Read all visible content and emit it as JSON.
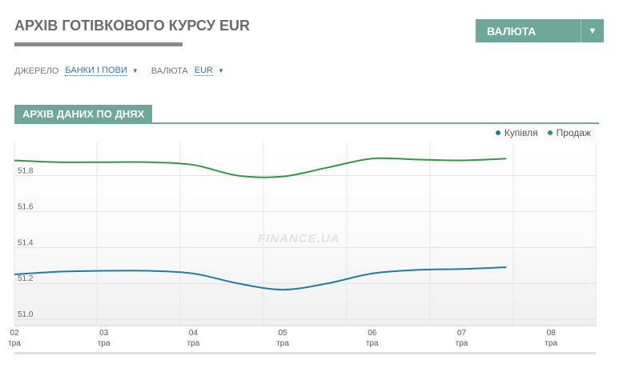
{
  "header": {
    "title": "АРХІВ ГОТІВКОВОГО КУРСУ EUR",
    "currency_button": "ВАЛЮТА",
    "currency_caret": "▼"
  },
  "filters": {
    "source_label": "ДЖЕРЕЛО",
    "source_value": "БАНКИ І ПОВИ",
    "currency_label": "ВАЛЮТА",
    "currency_value": "EUR",
    "caret": "▼"
  },
  "section": {
    "title": "АРХІВ ДАНИХ ПО ДНЯХ"
  },
  "watermark": "FINANCE.UA",
  "colors": {
    "buy": "#1b7ea8",
    "sell": "#2e9b44",
    "accent": "#6fa89a"
  },
  "chart_data": {
    "type": "line",
    "categories": [
      "02\nтра",
      "03\nтра",
      "04\nтра",
      "05\nтра",
      "06\nтра",
      "07\nтра",
      "08\nтра"
    ],
    "x_labels": [
      {
        "day": "02",
        "month": "тра"
      },
      {
        "day": "03",
        "month": "тра"
      },
      {
        "day": "04",
        "month": "тра"
      },
      {
        "day": "05",
        "month": "тра"
      },
      {
        "day": "06",
        "month": "тра"
      },
      {
        "day": "07",
        "month": "тра"
      },
      {
        "day": "08",
        "month": "тра"
      }
    ],
    "x": [
      2,
      2.5,
      3,
      3.5,
      4,
      4.5,
      5,
      5.5,
      6,
      6.5,
      7,
      7.5
    ],
    "series": [
      {
        "name": "Купівля",
        "color": "#1b7ea8",
        "values": [
          51.25,
          51.265,
          51.27,
          51.27,
          51.255,
          51.2,
          51.165,
          51.2,
          51.255,
          51.275,
          51.28,
          51.29
        ]
      },
      {
        "name": "Продаж",
        "color": "#2e9b44",
        "values": [
          51.885,
          51.875,
          51.875,
          51.875,
          51.86,
          51.8,
          51.795,
          51.845,
          51.895,
          51.89,
          51.885,
          51.895
        ]
      }
    ],
    "yticks": [
      "51.0",
      "51.2",
      "51.4",
      "51.6",
      "51.8"
    ],
    "ylim": [
      50.965,
      51.985
    ],
    "xlim": [
      2,
      8.5
    ],
    "grid": true,
    "legend": "top-right"
  }
}
